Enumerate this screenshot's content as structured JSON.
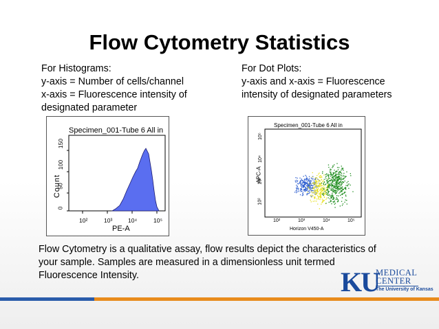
{
  "slide": {
    "title": "Flow Cytometry Statistics",
    "histogram_text": [
      "For Histograms:",
      "y-axis = Number of cells/channel",
      "x-axis = Fluorescence intensity of",
      "designated parameter"
    ],
    "dotplot_text": [
      "For Dot Plots:",
      "y-axis and x-axis = Fluorescence",
      "intensity of designated parameters"
    ],
    "summary_text": [
      "Flow Cytometry is a qualitative assay, flow results depict the characteristics of",
      "your sample. Samples are measured in a dimensionless unit termed",
      "Fluorescence Intensity."
    ]
  },
  "histogram": {
    "title": "Specimen_001-Tube 6 All in",
    "ylabel": "Count",
    "xlabel": "PE-A",
    "yticks": [
      "0",
      "50",
      "100",
      "150"
    ],
    "xticks": [
      "10²",
      "10³",
      "10⁴",
      "10⁵"
    ],
    "fill_color": "#5a6ef0"
  },
  "dotplot": {
    "title": "Specimen_001-Tube 6 All in",
    "ylabel": "APC-A",
    "xlabel": "Horizon V450-A",
    "xticks": [
      "10²",
      "10³",
      "10⁴",
      "10⁵"
    ],
    "yticks": [
      "10²",
      "10³",
      "10⁴",
      "10⁵"
    ],
    "colors": [
      "#2f5fd0",
      "#e8e020",
      "#1a8a1a"
    ]
  },
  "logo": {
    "mark": "KU",
    "line1": "MEDICAL",
    "line2": "CENTER",
    "line3": "The University of Kansas"
  },
  "colors": {
    "bar_blue": "#2a5caa",
    "bar_orange": "#e88b1c",
    "logo_blue": "#1a4a9c"
  }
}
